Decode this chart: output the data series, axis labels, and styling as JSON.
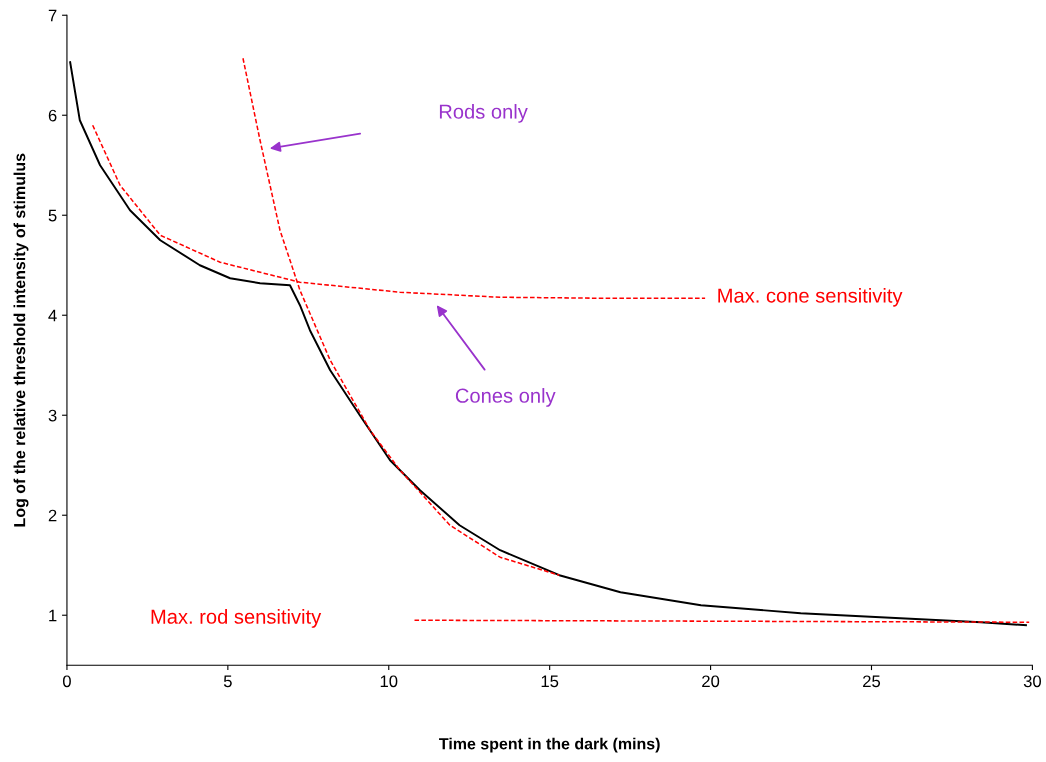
{
  "chart_data": {
    "type": "line",
    "xlabel": "Time spent in the dark (mins)",
    "ylabel": "Log of the relative threshold intensity of stimulus",
    "xlim": [
      0,
      30
    ],
    "ylim": [
      0.5,
      7
    ],
    "xticks": [
      0,
      5,
      10,
      15,
      20,
      25,
      30
    ],
    "yticks": [
      1,
      2,
      3,
      4,
      5,
      6,
      7
    ],
    "grid": false,
    "legend": false,
    "marker": "none",
    "series": [
      {
        "color": "#000000",
        "line_style": "solid",
        "x": [
          0.1,
          0.4,
          1.03,
          1.96,
          2.9,
          4.13,
          5.07,
          6.0,
          6.93,
          7.24,
          7.55,
          8.18,
          9.1,
          10.04,
          10.97,
          12.2,
          13.46,
          15.3,
          17.2,
          19.7,
          22.8,
          25.9,
          28.4,
          29.8
        ],
        "values": [
          6.53,
          5.95,
          5.5,
          5.05,
          4.75,
          4.5,
          4.37,
          4.32,
          4.3,
          4.1,
          3.85,
          3.45,
          3.0,
          2.55,
          2.25,
          1.9,
          1.65,
          1.4,
          1.23,
          1.1,
          1.02,
          0.97,
          0.93,
          0.9
        ]
      },
      {
        "color": "#ff0000",
        "line_style": "dashed",
        "x": [
          0.8,
          1.65,
          2.9,
          4.76,
          7.24,
          10.35,
          13.46,
          16.57,
          19.83
        ],
        "values": [
          5.9,
          5.3,
          4.8,
          4.53,
          4.33,
          4.23,
          4.18,
          4.17,
          4.17
        ]
      },
      {
        "color": "#ff0000",
        "line_style": "dashed",
        "x": [
          5.47,
          6.0,
          6.62,
          7.24,
          8.18,
          9.42,
          10.35,
          11.9,
          13.46,
          15.3
        ],
        "values": [
          6.57,
          5.75,
          4.85,
          4.25,
          3.55,
          2.85,
          2.45,
          1.9,
          1.58,
          1.4
        ]
      },
      {
        "color": "#ff0000",
        "line_style": "dashed",
        "x": [
          10.8,
          29.9
        ],
        "values": [
          0.95,
          0.93
        ]
      }
    ],
    "annotations": [
      "Rods only",
      "Cones only",
      "Max. cone sensitivity",
      "Max. rod sensitivity"
    ]
  }
}
